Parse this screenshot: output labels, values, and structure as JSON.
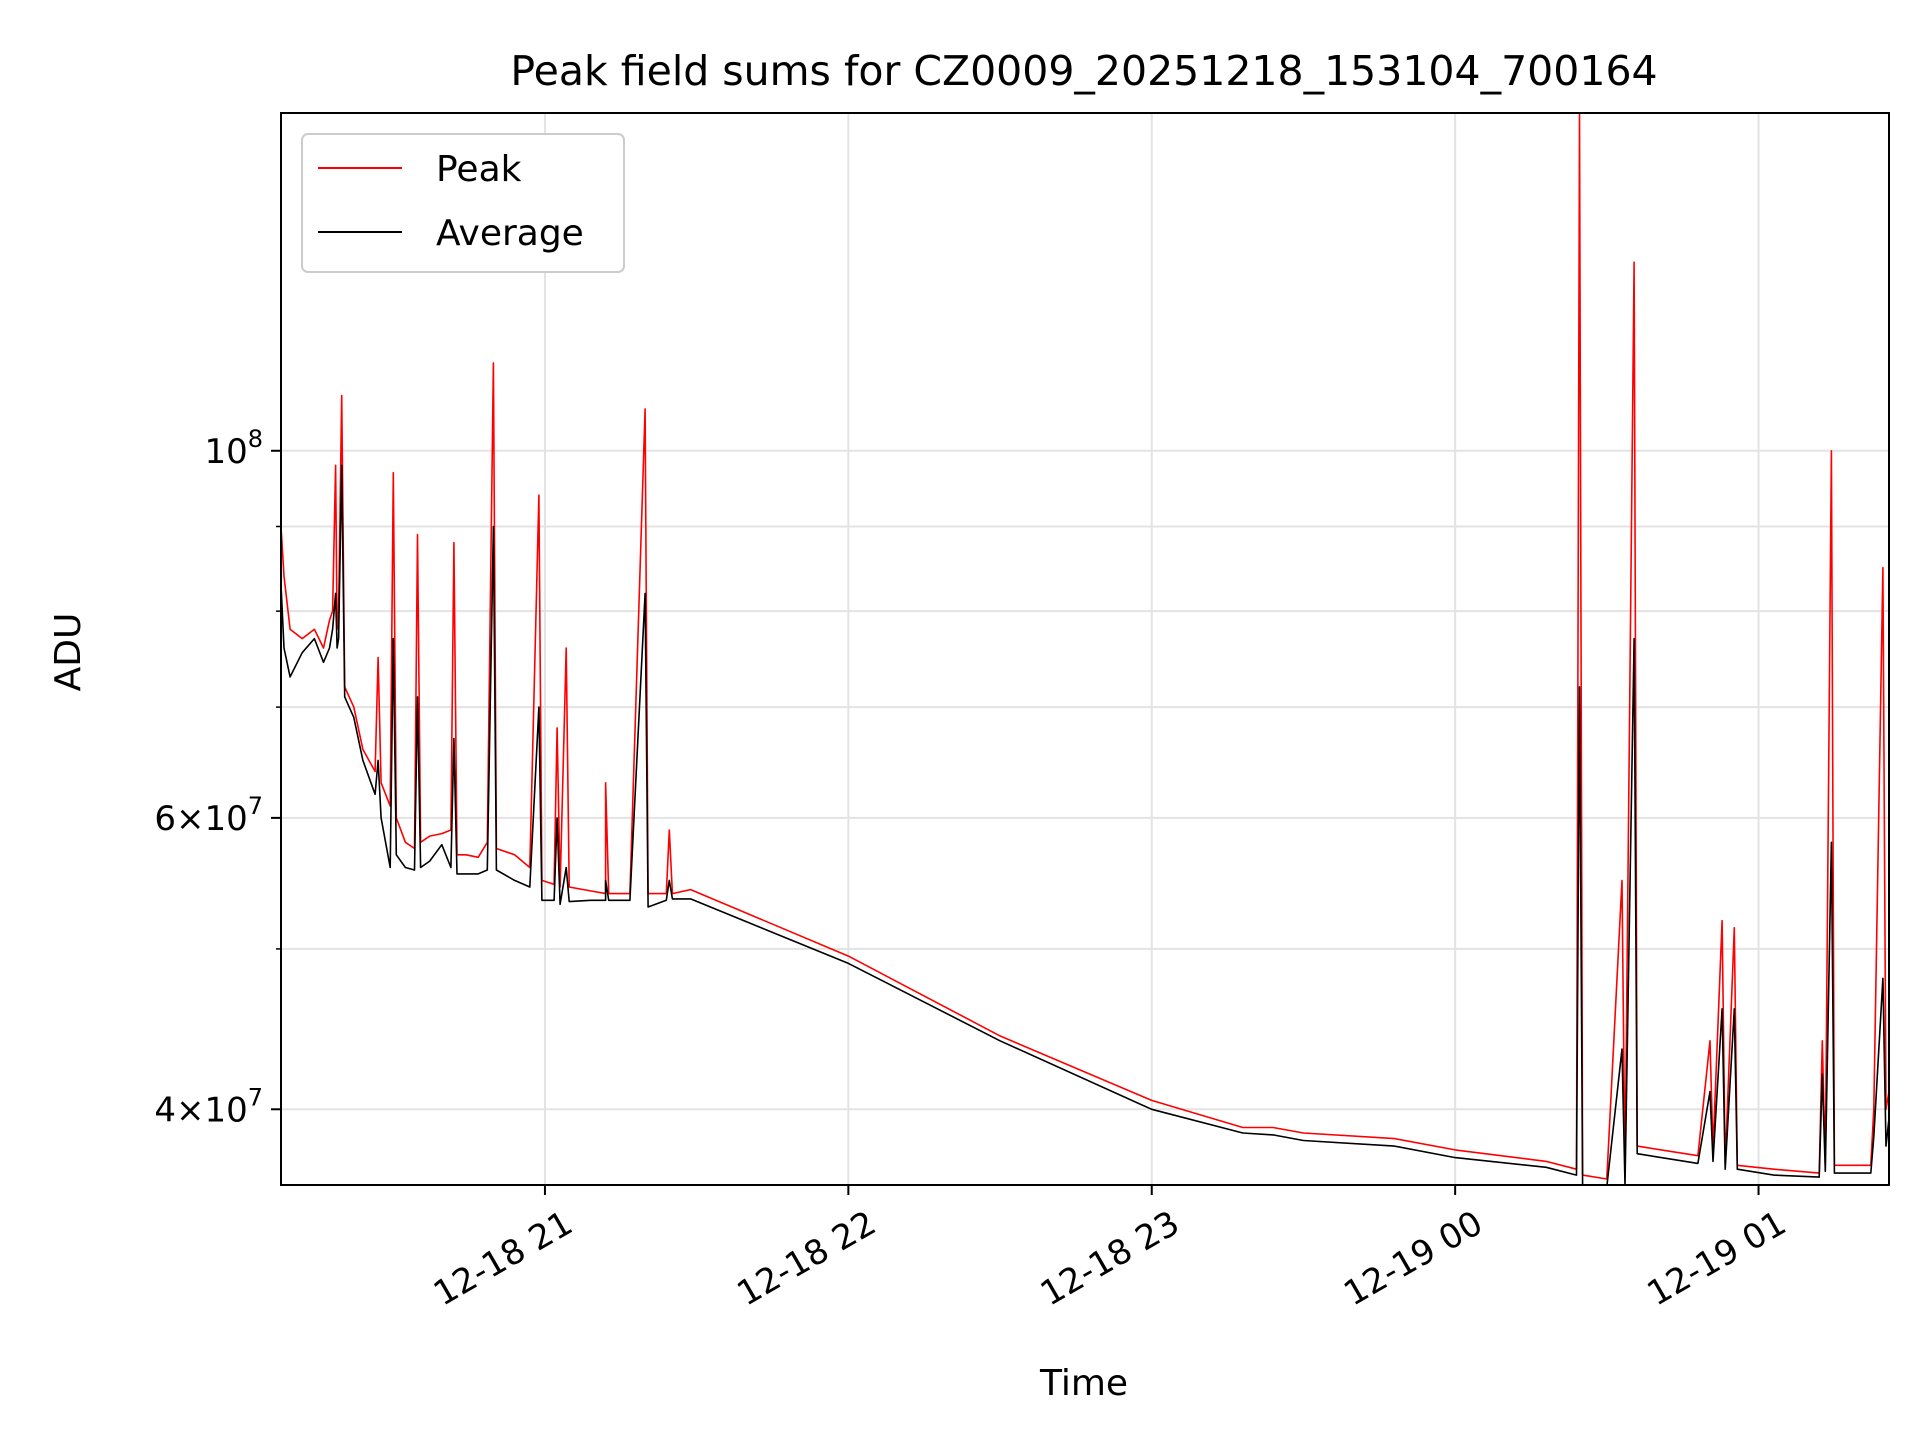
{
  "chart_data": {
    "type": "line",
    "title": "Peak field sums for CZ0009_20251218_153104_700164",
    "xlabel": "Time",
    "ylabel": "ADU",
    "yscale": "log",
    "ylim": [
      36000000,
      160000000
    ],
    "xlim_hours": [
      20.13,
      25.43
    ],
    "grid": true,
    "legend_position": "top-left",
    "x_ticks": [
      {
        "hour": 21,
        "label": "12-18 21"
      },
      {
        "hour": 22,
        "label": "12-18 22"
      },
      {
        "hour": 23,
        "label": "12-18 23"
      },
      {
        "hour": 24,
        "label": "12-19 00"
      },
      {
        "hour": 25,
        "label": "12-19 01"
      }
    ],
    "y_major_ticks": [
      {
        "value": 40000000,
        "base": "4",
        "exp": "7"
      },
      {
        "value": 60000000,
        "base": "6",
        "exp": "7"
      },
      {
        "value": 100000000,
        "base": "10",
        "exp": "8"
      }
    ],
    "y_minor_grid": [
      50000000,
      70000000,
      80000000,
      90000000
    ],
    "series": [
      {
        "name": "Peak",
        "color": "#ff0000",
        "points": [
          [
            20.13,
            90
          ],
          [
            20.14,
            84
          ],
          [
            20.16,
            78
          ],
          [
            20.2,
            77
          ],
          [
            20.24,
            78
          ],
          [
            20.27,
            76
          ],
          [
            20.29,
            79
          ],
          [
            20.3,
            80
          ],
          [
            20.31,
            98
          ],
          [
            20.315,
            78
          ],
          [
            20.32,
            80
          ],
          [
            20.33,
            108
          ],
          [
            20.34,
            72
          ],
          [
            20.37,
            70
          ],
          [
            20.4,
            66
          ],
          [
            20.44,
            64
          ],
          [
            20.45,
            75
          ],
          [
            20.46,
            63
          ],
          [
            20.49,
            61
          ],
          [
            20.5,
            97
          ],
          [
            20.51,
            60
          ],
          [
            20.54,
            58
          ],
          [
            20.57,
            57.5
          ],
          [
            20.58,
            89
          ],
          [
            20.59,
            58
          ],
          [
            20.62,
            58.5
          ],
          [
            20.66,
            58.7
          ],
          [
            20.69,
            59
          ],
          [
            20.7,
            88
          ],
          [
            20.71,
            57
          ],
          [
            20.74,
            57
          ],
          [
            20.78,
            56.8
          ],
          [
            20.81,
            58
          ],
          [
            20.83,
            113
          ],
          [
            20.84,
            57.5
          ],
          [
            20.9,
            57
          ],
          [
            20.95,
            56
          ],
          [
            20.98,
            94
          ],
          [
            20.99,
            55
          ],
          [
            21.03,
            54.7
          ],
          [
            21.04,
            68
          ],
          [
            21.05,
            54.5
          ],
          [
            21.07,
            76
          ],
          [
            21.08,
            54.5
          ],
          [
            21.15,
            54.2
          ],
          [
            21.2,
            54
          ],
          [
            21.2,
            63
          ],
          [
            21.21,
            54
          ],
          [
            21.28,
            54
          ],
          [
            21.33,
            106
          ],
          [
            21.34,
            54
          ],
          [
            21.4,
            54
          ],
          [
            21.41,
            59
          ],
          [
            21.42,
            54
          ],
          [
            21.48,
            54.3
          ],
          [
            22.0,
            49.5
          ],
          [
            22.5,
            44.3
          ],
          [
            23.0,
            40.5
          ],
          [
            23.3,
            39
          ],
          [
            23.4,
            39
          ],
          [
            23.5,
            38.7
          ],
          [
            23.8,
            38.4
          ],
          [
            24.0,
            37.8
          ],
          [
            24.3,
            37.2
          ],
          [
            24.4,
            36.8
          ],
          [
            24.41,
            160
          ],
          [
            24.42,
            36.5
          ],
          [
            24.5,
            36.3
          ],
          [
            24.55,
            55
          ],
          [
            24.56,
            36.5
          ],
          [
            24.59,
            130
          ],
          [
            24.6,
            38
          ],
          [
            24.8,
            37.5
          ],
          [
            24.84,
            44
          ],
          [
            24.85,
            37.8
          ],
          [
            24.88,
            52
          ],
          [
            24.89,
            37
          ],
          [
            24.92,
            51.5
          ],
          [
            24.93,
            37
          ],
          [
            25.05,
            36.8
          ],
          [
            25.2,
            36.6
          ],
          [
            25.21,
            44
          ],
          [
            25.22,
            37
          ],
          [
            25.24,
            100
          ],
          [
            25.25,
            37
          ],
          [
            25.37,
            37
          ],
          [
            25.38,
            40
          ],
          [
            25.41,
            85
          ],
          [
            25.42,
            40
          ],
          [
            25.43,
            41
          ]
        ]
      },
      {
        "name": "Average",
        "color": "#000000",
        "points": [
          [
            20.13,
            83
          ],
          [
            20.14,
            76
          ],
          [
            20.16,
            73
          ],
          [
            20.2,
            75.5
          ],
          [
            20.24,
            77
          ],
          [
            20.27,
            74.5
          ],
          [
            20.29,
            76
          ],
          [
            20.3,
            78
          ],
          [
            20.31,
            82
          ],
          [
            20.315,
            76
          ],
          [
            20.32,
            77
          ],
          [
            20.33,
            98
          ],
          [
            20.34,
            71
          ],
          [
            20.37,
            69
          ],
          [
            20.4,
            65
          ],
          [
            20.44,
            62
          ],
          [
            20.45,
            65
          ],
          [
            20.46,
            60
          ],
          [
            20.49,
            56
          ],
          [
            20.5,
            77
          ],
          [
            20.51,
            57
          ],
          [
            20.54,
            56
          ],
          [
            20.57,
            55.8
          ],
          [
            20.58,
            71
          ],
          [
            20.59,
            56
          ],
          [
            20.62,
            56.5
          ],
          [
            20.66,
            57.8
          ],
          [
            20.69,
            56
          ],
          [
            20.7,
            67
          ],
          [
            20.71,
            55.5
          ],
          [
            20.74,
            55.5
          ],
          [
            20.78,
            55.5
          ],
          [
            20.81,
            55.8
          ],
          [
            20.83,
            90
          ],
          [
            20.84,
            55.8
          ],
          [
            20.9,
            55
          ],
          [
            20.95,
            54.5
          ],
          [
            20.98,
            70
          ],
          [
            20.99,
            53.5
          ],
          [
            21.03,
            53.5
          ],
          [
            21.04,
            60
          ],
          [
            21.05,
            53.2
          ],
          [
            21.07,
            56
          ],
          [
            21.08,
            53.4
          ],
          [
            21.15,
            53.5
          ],
          [
            21.2,
            53.5
          ],
          [
            21.2,
            55
          ],
          [
            21.21,
            53.5
          ],
          [
            21.28,
            53.5
          ],
          [
            21.33,
            82
          ],
          [
            21.34,
            53
          ],
          [
            21.4,
            53.5
          ],
          [
            21.41,
            55
          ],
          [
            21.42,
            53.6
          ],
          [
            21.48,
            53.6
          ],
          [
            22.0,
            49
          ],
          [
            22.5,
            44
          ],
          [
            23.0,
            40
          ],
          [
            23.3,
            38.7
          ],
          [
            23.4,
            38.6
          ],
          [
            23.5,
            38.3
          ],
          [
            23.8,
            38
          ],
          [
            24.0,
            37.4
          ],
          [
            24.3,
            36.9
          ],
          [
            24.4,
            36.5
          ],
          [
            24.41,
            72
          ],
          [
            24.42,
            36
          ],
          [
            24.5,
            35.9
          ],
          [
            24.55,
            43.5
          ],
          [
            24.56,
            36
          ],
          [
            24.59,
            77
          ],
          [
            24.6,
            37.6
          ],
          [
            24.8,
            37.1
          ],
          [
            24.84,
            41
          ],
          [
            24.85,
            37.2
          ],
          [
            24.88,
            46
          ],
          [
            24.89,
            36.8
          ],
          [
            24.92,
            46
          ],
          [
            24.93,
            36.8
          ],
          [
            25.05,
            36.5
          ],
          [
            25.2,
            36.4
          ],
          [
            25.21,
            42
          ],
          [
            25.22,
            36.7
          ],
          [
            25.24,
            58
          ],
          [
            25.25,
            36.6
          ],
          [
            25.37,
            36.6
          ],
          [
            25.38,
            38.5
          ],
          [
            25.41,
            48
          ],
          [
            25.42,
            38
          ],
          [
            25.43,
            39.5
          ]
        ]
      }
    ]
  }
}
